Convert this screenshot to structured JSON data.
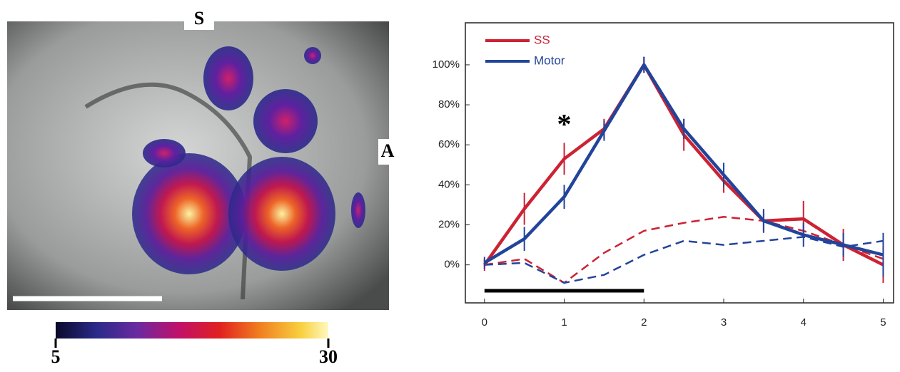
{
  "image_panel": {
    "labels": {
      "top": "S",
      "right": "A"
    },
    "colorbar": {
      "lim": [
        5,
        30
      ],
      "ticks": [
        5,
        30
      ]
    }
  },
  "chart_data": {
    "type": "line",
    "x": [
      0,
      0.5,
      1,
      1.5,
      2,
      2.5,
      3,
      3.5,
      4,
      4.5,
      5
    ],
    "xlim": [
      -0.24,
      5.13
    ],
    "xticks": [
      0,
      1,
      2,
      3,
      4,
      5
    ],
    "ylim": [
      -19,
      121
    ],
    "yticks": [
      {
        "value": 0,
        "label": "0%"
      },
      {
        "value": 20,
        "label": "20%"
      },
      {
        "value": 40,
        "label": "40%"
      },
      {
        "value": 60,
        "label": "60%"
      },
      {
        "value": 80,
        "label": "80%"
      },
      {
        "value": 100,
        "label": "100%"
      }
    ],
    "series": [
      {
        "name": "SS",
        "color": "#cc2233",
        "values": [
          0,
          28,
          53,
          68,
          100,
          65,
          42,
          22,
          23,
          10,
          0
        ],
        "errors": [
          3,
          8,
          8,
          5,
          4,
          8,
          6,
          5,
          9,
          8,
          9
        ]
      },
      {
        "name": "Motor",
        "color": "#22449a",
        "values": [
          1,
          13,
          34,
          67,
          100,
          68,
          45,
          22,
          15,
          10,
          5
        ],
        "errors": [
          3,
          6,
          6,
          5,
          4,
          5,
          6,
          6,
          6,
          6,
          11
        ]
      },
      {
        "color": "#cc2233",
        "dashed": true,
        "values": [
          0,
          3,
          -9,
          6,
          17,
          21,
          24,
          22,
          17,
          10,
          3
        ]
      },
      {
        "color": "#22449a",
        "dashed": true,
        "values": [
          0,
          1,
          -9,
          -5,
          5,
          12,
          10,
          12,
          14,
          9,
          12
        ]
      }
    ],
    "stimulus": [
      0,
      2
    ],
    "annotations": [
      {
        "text": "*",
        "x": 1
      }
    ]
  }
}
